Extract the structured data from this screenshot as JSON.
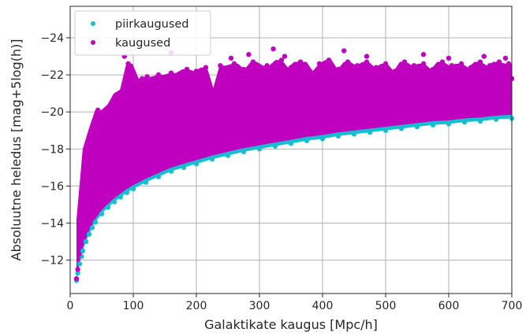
{
  "chart_data": {
    "type": "scatter",
    "title": "",
    "xlabel": "Galaktikate kaugus [Mpc/h]",
    "ylabel": "Absoluutne heledus [mag+5log(h)]",
    "xlim": [
      0,
      700
    ],
    "ylim": [
      -10.2,
      -25.7
    ],
    "y_inverted": true,
    "grid": true,
    "legend_position": "top-left",
    "x_ticks": [
      {
        "value": 0,
        "label": "0"
      },
      {
        "value": 100,
        "label": "100"
      },
      {
        "value": 200,
        "label": "200"
      },
      {
        "value": 300,
        "label": "300"
      },
      {
        "value": 400,
        "label": "400"
      },
      {
        "value": 500,
        "label": "500"
      },
      {
        "value": 600,
        "label": "600"
      },
      {
        "value": 700,
        "label": "700"
      }
    ],
    "y_ticks": [
      {
        "value": -12,
        "label": "−12"
      },
      {
        "value": -14,
        "label": "−14"
      },
      {
        "value": -16,
        "label": "−16"
      },
      {
        "value": -18,
        "label": "−18"
      },
      {
        "value": -20,
        "label": "−20"
      },
      {
        "value": -22,
        "label": "−22"
      },
      {
        "value": -24,
        "label": "−24"
      }
    ],
    "series": [
      {
        "name": "piirkaugused",
        "color": "#17becf",
        "points": [
          [
            10,
            -10.9
          ],
          [
            12,
            -11.3
          ],
          [
            15,
            -11.8
          ],
          [
            18,
            -12.2
          ],
          [
            20,
            -12.5
          ],
          [
            25,
            -13.0
          ],
          [
            30,
            -13.4
          ],
          [
            35,
            -13.75
          ],
          [
            40,
            -14.05
          ],
          [
            50,
            -14.5
          ],
          [
            60,
            -14.85
          ],
          [
            70,
            -15.15
          ],
          [
            80,
            -15.4
          ],
          [
            90,
            -15.65
          ],
          [
            100,
            -15.85
          ],
          [
            120,
            -16.2
          ],
          [
            140,
            -16.5
          ],
          [
            160,
            -16.8
          ],
          [
            180,
            -17.0
          ],
          [
            200,
            -17.2
          ],
          [
            225,
            -17.45
          ],
          [
            250,
            -17.65
          ],
          [
            275,
            -17.85
          ],
          [
            300,
            -18.0
          ],
          [
            325,
            -18.15
          ],
          [
            350,
            -18.3
          ],
          [
            375,
            -18.45
          ],
          [
            400,
            -18.55
          ],
          [
            425,
            -18.7
          ],
          [
            450,
            -18.8
          ],
          [
            475,
            -18.9
          ],
          [
            500,
            -19.0
          ],
          [
            525,
            -19.1
          ],
          [
            550,
            -19.2
          ],
          [
            575,
            -19.3
          ],
          [
            600,
            -19.35
          ],
          [
            625,
            -19.45
          ],
          [
            650,
            -19.5
          ],
          [
            675,
            -19.6
          ],
          [
            700,
            -19.65
          ]
        ]
      },
      {
        "name": "kaugused",
        "color": "#bf00bf",
        "points": [
          [
            10,
            -11.0
          ],
          [
            12,
            -11.5
          ],
          [
            14,
            -12.3
          ],
          [
            16,
            -13.0
          ],
          [
            18,
            -13.6
          ],
          [
            20,
            -14.2
          ],
          [
            22,
            -13.8
          ],
          [
            24,
            -15.0
          ],
          [
            26,
            -14.5
          ],
          [
            28,
            -15.8
          ],
          [
            30,
            -16.3
          ],
          [
            32,
            -15.2
          ],
          [
            34,
            -17.0
          ],
          [
            36,
            -16.0
          ],
          [
            38,
            -17.5
          ],
          [
            40,
            -18.0
          ],
          [
            42,
            -16.8
          ],
          [
            44,
            -18.5
          ],
          [
            46,
            -17.4
          ],
          [
            48,
            -19.0
          ],
          [
            50,
            -18.2
          ],
          [
            52,
            -19.3
          ],
          [
            55,
            -17.0
          ],
          [
            58,
            -19.8
          ],
          [
            60,
            -18.6
          ],
          [
            62,
            -20.1
          ],
          [
            65,
            -19.2
          ],
          [
            68,
            -20.4
          ],
          [
            70,
            -18.0
          ],
          [
            72,
            -20.7
          ],
          [
            75,
            -19.6
          ],
          [
            78,
            -21.0
          ],
          [
            80,
            -17.5
          ],
          [
            82,
            -20.3
          ],
          [
            85,
            -21.2
          ],
          [
            88,
            -19.0
          ],
          [
            90,
            -21.4
          ],
          [
            92,
            -20.0
          ],
          [
            95,
            -21.5
          ],
          [
            98,
            -18.4
          ],
          [
            100,
            -21.6
          ],
          [
            103,
            -20.6
          ],
          [
            106,
            -21.7
          ],
          [
            110,
            -19.3
          ],
          [
            114,
            -21.8
          ],
          [
            118,
            -20.8
          ],
          [
            122,
            -21.9
          ],
          [
            126,
            -18.9
          ],
          [
            130,
            -21.7
          ],
          [
            135,
            -20.2
          ],
          [
            140,
            -22.0
          ],
          [
            145,
            -19.6
          ],
          [
            150,
            -21.8
          ],
          [
            155,
            -20.9
          ],
          [
            160,
            -22.1
          ],
          [
            165,
            -19.2
          ],
          [
            170,
            -21.5
          ],
          [
            175,
            -22.0
          ],
          [
            180,
            -20.3
          ],
          [
            185,
            -22.3
          ],
          [
            190,
            -21.0
          ],
          [
            195,
            -19.8
          ],
          [
            200,
            -22.2
          ],
          [
            208,
            -20.5
          ],
          [
            215,
            -22.4
          ],
          [
            222,
            -21.3
          ],
          [
            230,
            -20.0
          ],
          [
            238,
            -22.5
          ],
          [
            245,
            -21.6
          ],
          [
            252,
            -20.7
          ],
          [
            260,
            -22.6
          ],
          [
            268,
            -21.1
          ],
          [
            275,
            -22.3
          ],
          [
            282,
            -20.3
          ],
          [
            290,
            -22.7
          ],
          [
            298,
            -21.7
          ],
          [
            305,
            -20.9
          ],
          [
            312,
            -22.5
          ],
          [
            320,
            -22.0
          ],
          [
            328,
            -21.2
          ],
          [
            335,
            -22.8
          ],
          [
            342,
            -20.5
          ],
          [
            350,
            -22.4
          ],
          [
            358,
            -21.5
          ],
          [
            365,
            -22.7
          ],
          [
            372,
            -20.8
          ],
          [
            380,
            -22.2
          ],
          [
            388,
            -21.9
          ],
          [
            395,
            -22.6
          ],
          [
            402,
            -21.0
          ],
          [
            410,
            -22.8
          ],
          [
            418,
            -21.6
          ],
          [
            425,
            -22.3
          ],
          [
            432,
            -20.7
          ],
          [
            440,
            -22.7
          ],
          [
            448,
            -21.8
          ],
          [
            455,
            -22.5
          ],
          [
            462,
            -21.1
          ],
          [
            470,
            -22.7
          ],
          [
            478,
            -21.9
          ],
          [
            485,
            -22.4
          ],
          [
            492,
            -20.9
          ],
          [
            500,
            -22.6
          ],
          [
            508,
            -21.6
          ],
          [
            515,
            -22.2
          ],
          [
            522,
            -21.3
          ],
          [
            530,
            -22.7
          ],
          [
            538,
            -21.9
          ],
          [
            545,
            -22.5
          ],
          [
            552,
            -21.1
          ],
          [
            560,
            -22.6
          ],
          [
            568,
            -21.8
          ],
          [
            575,
            -22.3
          ],
          [
            582,
            -21.5
          ],
          [
            590,
            -22.7
          ],
          [
            598,
            -22.0
          ],
          [
            605,
            -22.5
          ],
          [
            612,
            -21.3
          ],
          [
            620,
            -22.6
          ],
          [
            628,
            -21.9
          ],
          [
            635,
            -22.4
          ],
          [
            642,
            -21.6
          ],
          [
            650,
            -22.7
          ],
          [
            658,
            -22.1
          ],
          [
            665,
            -22.5
          ],
          [
            672,
            -21.4
          ],
          [
            680,
            -22.7
          ],
          [
            688,
            -22.0
          ],
          [
            695,
            -22.6
          ],
          [
            700,
            -21.8
          ],
          [
            26,
            -18.0
          ],
          [
            34,
            -19.1
          ],
          [
            44,
            -20.1
          ],
          [
            86,
            -23.0
          ],
          [
            92,
            -22.6
          ],
          [
            160,
            -23.2
          ],
          [
            255,
            -22.9
          ],
          [
            283,
            -23.1
          ],
          [
            316,
            -22.3
          ],
          [
            322,
            -23.4
          ],
          [
            340,
            -23.0
          ],
          [
            434,
            -23.3
          ],
          [
            470,
            -23.0
          ],
          [
            560,
            -23.1
          ],
          [
            600,
            -22.9
          ],
          [
            656,
            -23.0
          ],
          [
            690,
            -22.9
          ],
          [
            120,
            -20.4
          ],
          [
            205,
            -21.9
          ],
          [
            305,
            -21.4
          ],
          [
            415,
            -20.3
          ],
          [
            520,
            -20.6
          ],
          [
            610,
            -20.8
          ],
          [
            665,
            -20.7
          ]
        ]
      }
    ]
  }
}
